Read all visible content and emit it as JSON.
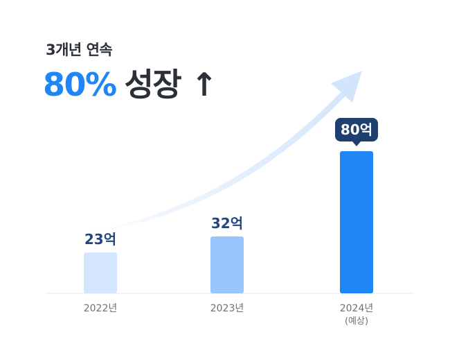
{
  "header": {
    "subtitle": "3개년 연속",
    "headline_percent": "80%",
    "headline_text": "성장 ↑"
  },
  "colors": {
    "bar_2022": "#d4e6fd",
    "bar_2023": "#98c5fb",
    "bar_2024": "#1f86f5",
    "label": "#25467a",
    "callout_bg": "#1f3f6e",
    "axis": "#e6e9ee",
    "tick_text": "#6b7178",
    "arrow": "#dbe9fd"
  },
  "chart_data": {
    "type": "bar",
    "categories": [
      "2022년",
      "2023년",
      "2024년"
    ],
    "category_notes": [
      "",
      "",
      "(예상)"
    ],
    "values": [
      23,
      32,
      80
    ],
    "value_labels": [
      "23억",
      "32억",
      "80억"
    ],
    "highlight_index": 2,
    "title": "",
    "xlabel": "",
    "ylabel": "",
    "ylim": [
      0,
      80
    ],
    "grid": false,
    "legend": "none"
  }
}
